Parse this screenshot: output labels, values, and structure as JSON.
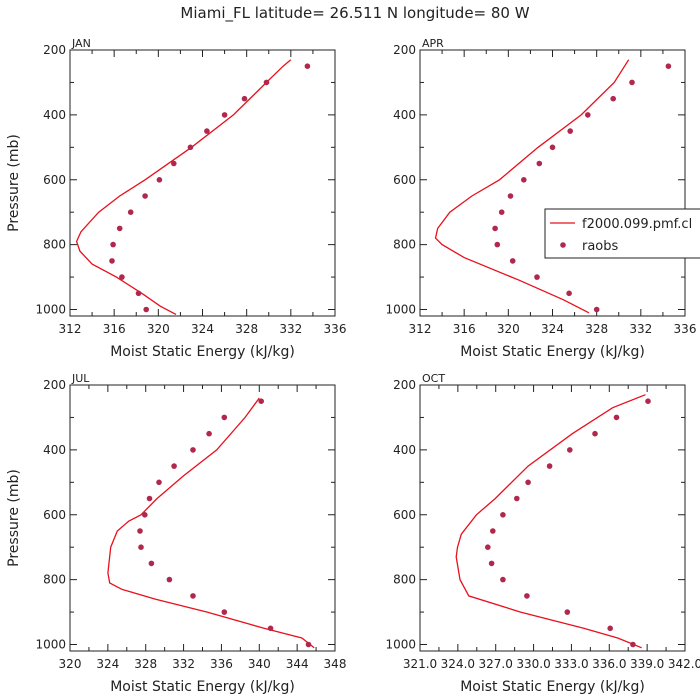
{
  "figure": {
    "title": "Miami_FL   latitude= 26.511 N longitude= 80 W",
    "model_color": "#e8101c",
    "obs_color": "#b0284e"
  },
  "legend": {
    "entries": [
      {
        "label": "f2000.099.pmf.cl",
        "kind": "line"
      },
      {
        "label": "raobs",
        "kind": "marker"
      }
    ],
    "placement": "right-of-APR-panel"
  },
  "chart_data": [
    {
      "type": "line",
      "panel": "JAN",
      "xlabel": "Moist Static Energy (kJ/kg)",
      "ylabel": "Pressure (mb)",
      "xlim": [
        312,
        336
      ],
      "ylim": [
        1020,
        200
      ],
      "xticks": [
        312,
        316,
        320,
        324,
        328,
        332,
        336
      ],
      "xtick_labels": [
        "312",
        "316",
        "320",
        "324",
        "328",
        "332",
        "336"
      ],
      "yticks": [
        200,
        400,
        600,
        800,
        1000
      ],
      "series": [
        {
          "kind": "line",
          "x": [
            321.6,
            320.2,
            318.5,
            316.2,
            314.0,
            312.9,
            312.6,
            313.0,
            314.6,
            316.5,
            318.8,
            323.0,
            326.8,
            329.8,
            331.3,
            332.0
          ],
          "y": [
            1015,
            990,
            950,
            900,
            860,
            820,
            790,
            760,
            700,
            650,
            600,
            500,
            400,
            300,
            250,
            230
          ]
        },
        {
          "kind": "scatter",
          "x": [
            318.9,
            318.2,
            316.7,
            315.8,
            315.9,
            316.5,
            317.5,
            318.8,
            320.1,
            321.4,
            322.9,
            324.4,
            326.0,
            327.8,
            329.8,
            333.5
          ],
          "y": [
            1000,
            950,
            900,
            850,
            800,
            750,
            700,
            650,
            600,
            550,
            500,
            450,
            400,
            350,
            300,
            250
          ]
        }
      ]
    },
    {
      "type": "line",
      "panel": "APR",
      "xlabel": "Moist Static Energy (kJ/kg)",
      "ylabel": "",
      "xlim": [
        312,
        336
      ],
      "ylim": [
        1020,
        200
      ],
      "xticks": [
        312,
        316,
        320,
        324,
        328,
        332,
        336
      ],
      "xtick_labels": [
        "312",
        "316",
        "320",
        "324",
        "328",
        "332",
        "336"
      ],
      "yticks": [
        200,
        400,
        600,
        800,
        1000
      ],
      "series": [
        {
          "kind": "line",
          "x": [
            327.3,
            325.0,
            321.0,
            316.0,
            314.0,
            313.4,
            313.6,
            314.7,
            316.7,
            319.2,
            322.7,
            326.6,
            329.6,
            330.9
          ],
          "y": [
            1010,
            970,
            910,
            840,
            800,
            780,
            750,
            700,
            650,
            600,
            500,
            400,
            300,
            230
          ]
        },
        {
          "kind": "scatter",
          "x": [
            328.0,
            325.5,
            322.6,
            320.4,
            319.0,
            318.8,
            319.4,
            320.2,
            321.4,
            322.8,
            324.0,
            325.6,
            327.2,
            329.5,
            331.2,
            334.5
          ],
          "y": [
            1000,
            950,
            900,
            850,
            800,
            750,
            700,
            650,
            600,
            550,
            500,
            450,
            400,
            350,
            300,
            250
          ]
        }
      ]
    },
    {
      "type": "line",
      "panel": "JUL",
      "xlabel": "Moist Static Energy (kJ/kg)",
      "ylabel": "Pressure (mb)",
      "xlim": [
        320,
        348
      ],
      "ylim": [
        1020,
        200
      ],
      "xticks": [
        320,
        324,
        328,
        332,
        336,
        340,
        344,
        348
      ],
      "xtick_labels": [
        "320",
        "324",
        "328",
        "332",
        "336",
        "340",
        "344",
        "348"
      ],
      "yticks": [
        200,
        400,
        600,
        800,
        1000
      ],
      "series": [
        {
          "kind": "line",
          "x": [
            345.8,
            344.5,
            340.5,
            334.5,
            329.0,
            325.5,
            324.2,
            324.0,
            324.3,
            325.0,
            326.2,
            327.5,
            329.2,
            332.0,
            335.5,
            338.5,
            340.0
          ],
          "y": [
            1010,
            980,
            950,
            900,
            860,
            830,
            810,
            780,
            700,
            650,
            620,
            600,
            550,
            480,
            400,
            300,
            240
          ]
        },
        {
          "kind": "scatter",
          "x": [
            345.2,
            341.2,
            336.3,
            333.0,
            330.5,
            328.6,
            327.5,
            327.4,
            327.9,
            328.4,
            329.4,
            331.0,
            333.0,
            334.7,
            336.3,
            340.2
          ],
          "y": [
            1000,
            950,
            900,
            850,
            800,
            750,
            700,
            650,
            600,
            550,
            500,
            450,
            400,
            350,
            300,
            250
          ]
        }
      ]
    },
    {
      "type": "line",
      "panel": "OCT",
      "xlabel": "Moist Static Energy (kJ/kg)",
      "ylabel": "",
      "xlim": [
        321.03,
        342.03
      ],
      "ylim": [
        1020,
        200
      ],
      "xticks": [
        321.03,
        324.03,
        327.03,
        330.03,
        333.03,
        336.03,
        339.03,
        342.03
      ],
      "xtick_labels": [
        "321.0",
        "324.0",
        "327.0",
        "330.0",
        "333.0",
        "336.0",
        "339.0",
        "342.0"
      ],
      "yticks": [
        200,
        400,
        600,
        800,
        1000
      ],
      "series": [
        {
          "kind": "line",
          "x": [
            338.6,
            336.7,
            334.0,
            329.0,
            324.9,
            324.2,
            323.9,
            324.0,
            324.3,
            325.5,
            327.0,
            329.6,
            333.1,
            336.3,
            338.9
          ],
          "y": [
            1010,
            980,
            950,
            900,
            850,
            800,
            730,
            700,
            660,
            600,
            550,
            450,
            350,
            270,
            230
          ]
        },
        {
          "kind": "scatter",
          "x": [
            337.9,
            336.1,
            332.7,
            329.5,
            327.6,
            326.7,
            326.4,
            326.8,
            327.6,
            328.7,
            329.6,
            331.3,
            332.9,
            334.9,
            336.6,
            339.1
          ],
          "y": [
            1000,
            950,
            900,
            850,
            800,
            750,
            700,
            650,
            600,
            550,
            500,
            450,
            400,
            350,
            300,
            250
          ]
        }
      ]
    }
  ]
}
